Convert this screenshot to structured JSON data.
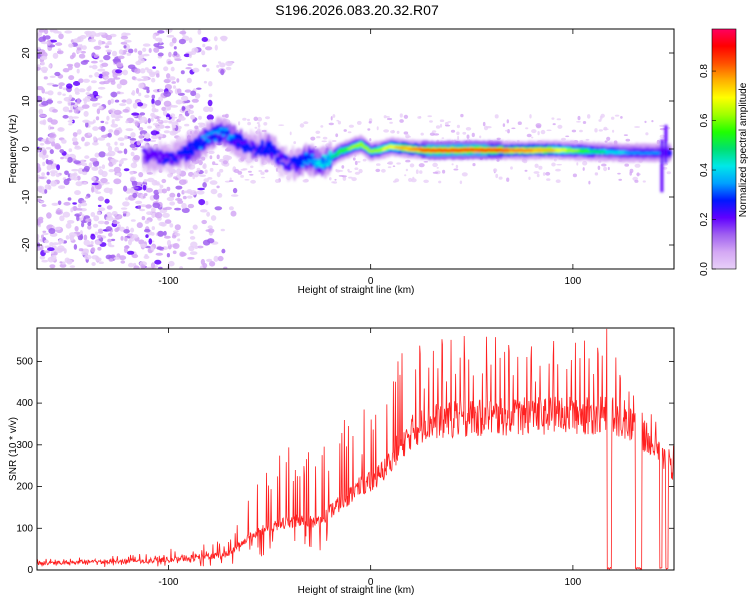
{
  "title": "S196.2026.083.20.32.R07",
  "chart_data": [
    {
      "type": "heatmap",
      "title": "S196.2026.083.20.32.R07",
      "xlabel": "Height of straight line (km)",
      "ylabel": "Frequency (Hz)",
      "xlim": [
        -165,
        150
      ],
      "ylim": [
        -25,
        25
      ],
      "xticks": [
        "-100",
        "0",
        "100"
      ],
      "xtick_values": [
        -100,
        0,
        100
      ],
      "yticks": [
        "-20",
        "-10",
        "0",
        "10",
        "20"
      ],
      "ytick_values": [
        -20,
        -10,
        0,
        10,
        20
      ],
      "colorbar": {
        "label": "Normalized spectral amplitude",
        "range": [
          0,
          0.97
        ],
        "ticks": [
          "0.0",
          "0.2",
          "0.4",
          "0.6",
          "0.8"
        ],
        "tick_values": [
          0,
          0.2,
          0.4,
          0.6,
          0.8
        ],
        "colors": [
          "#e8d0f8",
          "#d4a8f4",
          "#a060f0",
          "#6000ff",
          "#0018ff",
          "#00a0ff",
          "#00e8e8",
          "#00e070",
          "#20ff00",
          "#a0ff00",
          "#ffff00",
          "#ffb000",
          "#ff5000",
          "#ff0000",
          "#ff0060"
        ]
      },
      "ridge": {
        "x": [
          -112,
          -100,
          -90,
          -80,
          -72,
          -65,
          -58,
          -50,
          -45,
          -40,
          -35,
          -30,
          -25,
          -20,
          -15,
          -10,
          -5,
          0,
          5,
          10,
          20,
          30,
          50,
          70,
          90,
          110,
          130,
          148
        ],
        "freq": [
          -1.5,
          -1.8,
          -0.5,
          2.5,
          3.5,
          1.5,
          0,
          0.5,
          -2,
          -3,
          -2.5,
          -2,
          -3,
          -2,
          -0.5,
          0.2,
          1,
          -0.5,
          -0.2,
          0.5,
          0,
          -0.3,
          -0.2,
          -0.3,
          -0.2,
          -0.5,
          -0.8,
          -0.8
        ],
        "amp": [
          0.22,
          0.25,
          0.3,
          0.32,
          0.33,
          0.3,
          0.28,
          0.3,
          0.28,
          0.28,
          0.3,
          0.35,
          0.4,
          0.45,
          0.55,
          0.6,
          0.65,
          0.6,
          0.65,
          0.7,
          0.8,
          0.92,
          0.92,
          0.85,
          0.75,
          0.5,
          0.35,
          0.3
        ]
      },
      "noise_region_x": [
        -165,
        -75
      ]
    },
    {
      "type": "line",
      "xlabel": "Height of straight line (km)",
      "ylabel": "SNR (10 * v/v)",
      "xlim": [
        -165,
        150
      ],
      "ylim": [
        0,
        580
      ],
      "xticks": [
        "-100",
        "0",
        "100"
      ],
      "xtick_values": [
        -100,
        0,
        100
      ],
      "yticks": [
        "0",
        "100",
        "200",
        "300",
        "400",
        "500"
      ],
      "ytick_values": [
        0,
        100,
        200,
        300,
        400,
        500
      ],
      "series": [
        {
          "name": "SNR",
          "color": "#ff2020",
          "x": [
            -165,
            -150,
            -130,
            -110,
            -90,
            -80,
            -70,
            -65,
            -60,
            -55,
            -50,
            -45,
            -40,
            -35,
            -30,
            -25,
            -20,
            -15,
            -10,
            -5,
            0,
            5,
            10,
            15,
            20,
            25,
            30,
            40,
            50,
            60,
            70,
            80,
            90,
            100,
            110,
            117,
            118,
            122,
            128,
            130,
            132,
            138,
            143,
            145,
            147,
            150
          ],
          "base": [
            15,
            18,
            20,
            22,
            28,
            32,
            40,
            60,
            80,
            95,
            100,
            110,
            115,
            120,
            115,
            120,
            140,
            160,
            180,
            200,
            210,
            230,
            270,
            300,
            330,
            345,
            355,
            360,
            365,
            365,
            368,
            368,
            370,
            370,
            370,
            370,
            370,
            365,
            350,
            340,
            330,
            310,
            280,
            265,
            250,
            240
          ],
          "spike": [
            8,
            10,
            12,
            15,
            20,
            25,
            35,
            55,
            80,
            110,
            140,
            160,
            170,
            170,
            160,
            160,
            170,
            180,
            180,
            160,
            150,
            150,
            160,
            170,
            180,
            180,
            170,
            160,
            165,
            170,
            175,
            180,
            180,
            185,
            185,
            180,
            160,
            120,
            80,
            70,
            60,
            60,
            60,
            60,
            60,
            60
          ]
        }
      ],
      "dropouts": [
        [
          117,
          119
        ],
        [
          131,
          134
        ],
        [
          143,
          144
        ],
        [
          146,
          147
        ]
      ]
    }
  ]
}
